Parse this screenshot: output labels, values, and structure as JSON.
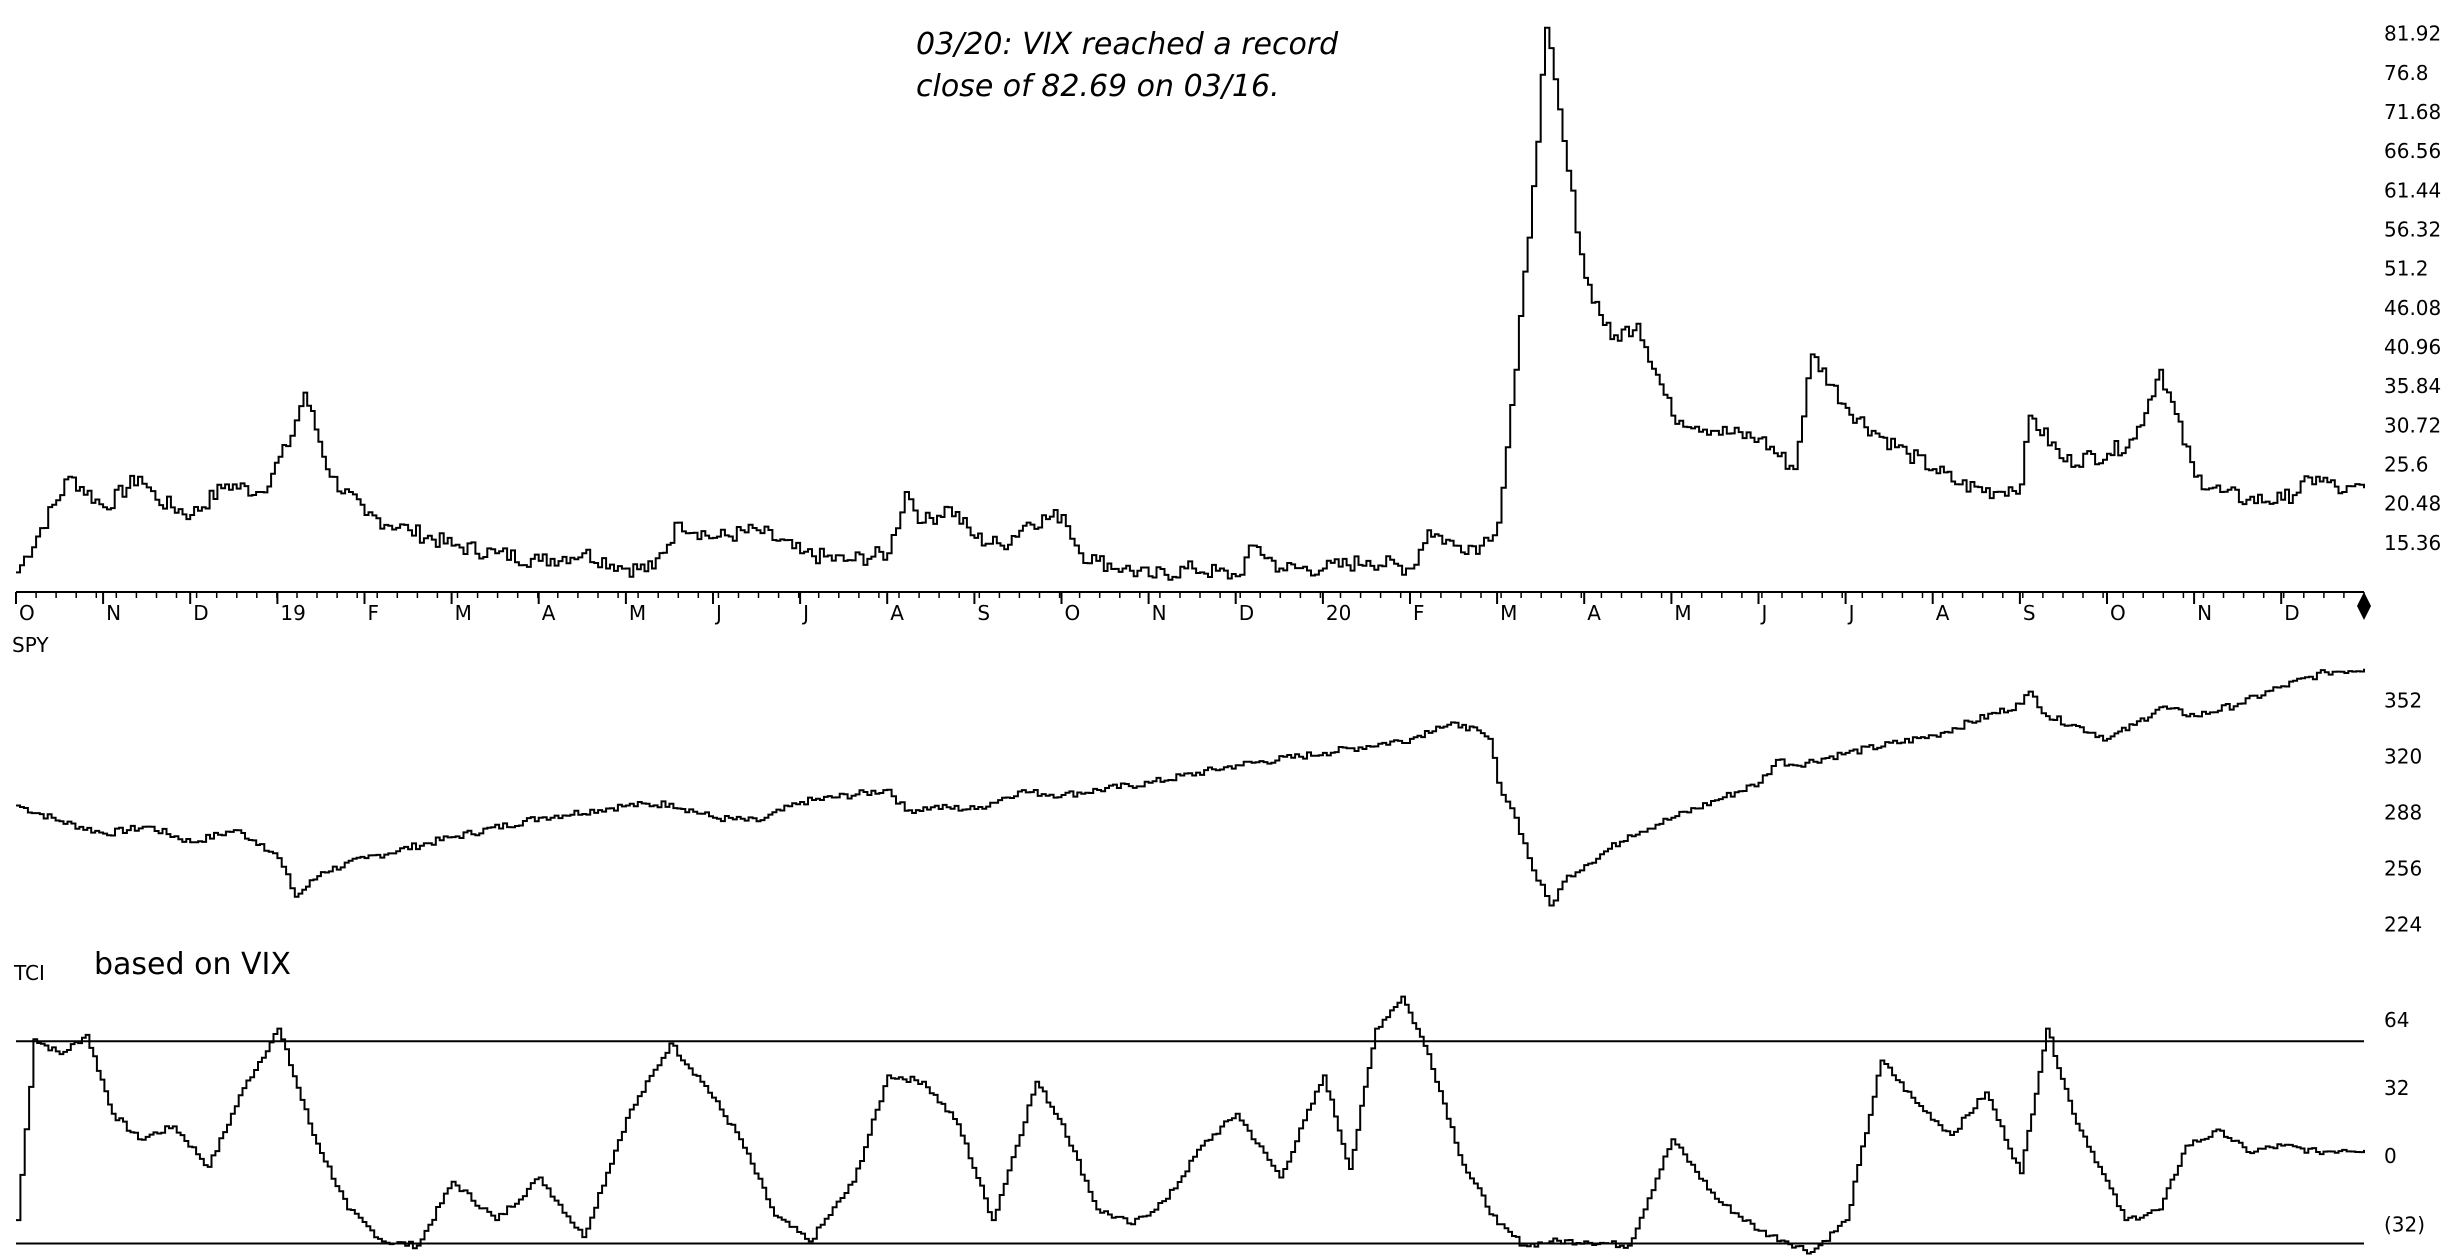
{
  "chart_data": [
    {
      "type": "line",
      "panel": "vix",
      "annotation": [
        "03/20: VIX reached a record",
        "close of 82.69 on 03/16."
      ],
      "ytick_labels": [
        "81.92",
        "76.8",
        "71.68",
        "66.56",
        "61.44",
        "56.32",
        "51.2",
        "46.08",
        "40.96",
        "35.84",
        "30.72",
        "25.6",
        "20.48",
        "15.36"
      ],
      "yticks": [
        81.92,
        76.8,
        71.68,
        66.56,
        61.44,
        56.32,
        51.2,
        46.08,
        40.96,
        35.84,
        30.72,
        25.6,
        20.48,
        15.36
      ],
      "ylim": [
        10.5,
        84.5
      ],
      "x_axis_labels": [
        "O",
        "N",
        "D",
        "19",
        "F",
        "M",
        "A",
        "M",
        "J",
        "J",
        "A",
        "S",
        "O",
        "N",
        "D",
        "20",
        "F",
        "M",
        "A",
        "M",
        "J",
        "J",
        "A",
        "S",
        "O",
        "N",
        "D"
      ],
      "x": [
        0,
        0.6,
        1,
        1.4,
        1.6,
        2,
        2.4,
        2.8,
        3.1,
        3.3,
        3.6,
        4,
        4.5,
        5,
        5.5,
        6,
        6.5,
        7,
        7.3,
        7.6,
        8,
        8.5,
        9,
        9.5,
        10,
        10.2,
        10.4,
        10.7,
        11,
        11.3,
        11.6,
        12,
        12.2,
        12.4,
        12.7,
        13,
        13.5,
        14,
        14.2,
        14.5,
        15,
        15.5,
        16,
        16.2,
        16.5,
        16.8,
        17,
        17.2,
        17.4,
        17.55,
        17.8,
        18,
        18.3,
        18.6,
        19,
        19.5,
        20,
        20.4,
        20.6,
        21,
        21.3,
        21.7,
        22,
        22.3,
        22.7,
        23,
        23.1,
        23.5,
        24,
        24.3,
        24.6,
        25,
        25.3,
        25.6,
        26,
        26.4,
        26.7,
        26.95
      ],
      "values": [
        11.5,
        24,
        20,
        24,
        21,
        19,
        23,
        22,
        28,
        35,
        24,
        19,
        17,
        15,
        14,
        13,
        14,
        12,
        12,
        18,
        16,
        17,
        14,
        13,
        14,
        22,
        18,
        20,
        16,
        15,
        18,
        19,
        14,
        13,
        12,
        11,
        12,
        11,
        15,
        12,
        12,
        13,
        12,
        17,
        15,
        15,
        18,
        38,
        62,
        82.69,
        64,
        50,
        42,
        44,
        32,
        30,
        29,
        25,
        40,
        33,
        30,
        27,
        25,
        23,
        22,
        23,
        32,
        26,
        27,
        29,
        38,
        24,
        22,
        21,
        21,
        24,
        22,
        22.5
      ]
    },
    {
      "type": "line",
      "panel": "spy",
      "title": "SPY",
      "ytick_labels": [
        "352",
        "320",
        "288",
        "256",
        "224"
      ],
      "yticks": [
        352,
        320,
        288,
        256,
        224
      ],
      "ylim": [
        221,
        375
      ],
      "x": [
        0,
        0.5,
        1,
        1.5,
        2,
        2.5,
        2.8,
        3,
        3.2,
        3.5,
        4,
        5,
        6,
        7,
        7.5,
        8,
        8.5,
        9,
        10,
        10.2,
        10.5,
        11,
        11.5,
        12,
        13,
        14,
        15,
        16,
        16.3,
        16.6,
        16.9,
        17,
        17.2,
        17.4,
        17.6,
        17.8,
        18,
        18.5,
        19,
        19.5,
        20,
        20.2,
        20.4,
        21,
        22,
        23,
        23.1,
        23.3,
        23.6,
        24,
        24.3,
        24.6,
        25,
        25.5,
        26,
        26.5,
        26.95
      ],
      "values": [
        292,
        283,
        276,
        280,
        271,
        278,
        270,
        262,
        240,
        254,
        262,
        274,
        285,
        292,
        293,
        285,
        283,
        294,
        301,
        289,
        291,
        290,
        300,
        298,
        305,
        315,
        322,
        330,
        337,
        338,
        330,
        305,
        285,
        255,
        235,
        252,
        258,
        275,
        285,
        295,
        305,
        318,
        315,
        322,
        332,
        350,
        357,
        343,
        338,
        330,
        338,
        348,
        343,
        350,
        360,
        368,
        370
      ]
    },
    {
      "type": "line",
      "panel": "tci",
      "title": "TCI",
      "subtitle": "based on VIX",
      "ytick_labels": [
        "64",
        "32",
        "0",
        "(32)"
      ],
      "yticks": [
        64,
        32,
        0,
        -32
      ],
      "ylim": [
        -45,
        80
      ],
      "hlines": [
        54,
        -41
      ],
      "x": [
        0,
        0.2,
        0.5,
        0.8,
        1.1,
        1.4,
        1.8,
        2.2,
        2.6,
        3,
        3.4,
        3.8,
        4.2,
        4.6,
        5,
        5.5,
        6,
        6.5,
        7,
        7.5,
        7.9,
        8.3,
        8.7,
        9.1,
        9.6,
        10,
        10.4,
        10.8,
        11.2,
        11.7,
        12,
        12.4,
        12.8,
        13.2,
        13.6,
        14,
        14.5,
        15,
        15.3,
        15.6,
        15.9,
        16.2,
        16.6,
        17,
        17.3,
        17.6,
        18,
        18.5,
        19,
        19.5,
        20,
        20.3,
        20.6,
        21,
        21.4,
        21.8,
        22.2,
        22.6,
        23,
        23.3,
        23.6,
        23.9,
        24.2,
        24.6,
        24.9,
        25.3,
        25.6,
        26,
        26.4,
        26.7,
        26.95
      ],
      "values": [
        -30,
        55,
        48,
        57,
        20,
        8,
        14,
        -5,
        32,
        60,
        10,
        -25,
        -40,
        -42,
        -12,
        -30,
        -10,
        -38,
        18,
        53,
        33,
        8,
        -28,
        -40,
        -12,
        38,
        35,
        15,
        -30,
        35,
        15,
        -25,
        -32,
        -20,
        5,
        20,
        -10,
        38,
        -6,
        60,
        75,
        48,
        -4,
        -32,
        -42,
        -40,
        -40,
        -42,
        8,
        -20,
        -35,
        -40,
        -45,
        -30,
        45,
        25,
        10,
        30,
        -8,
        60,
        20,
        -5,
        -30,
        -25,
        5,
        12,
        2,
        5,
        2,
        3,
        3
      ]
    }
  ]
}
